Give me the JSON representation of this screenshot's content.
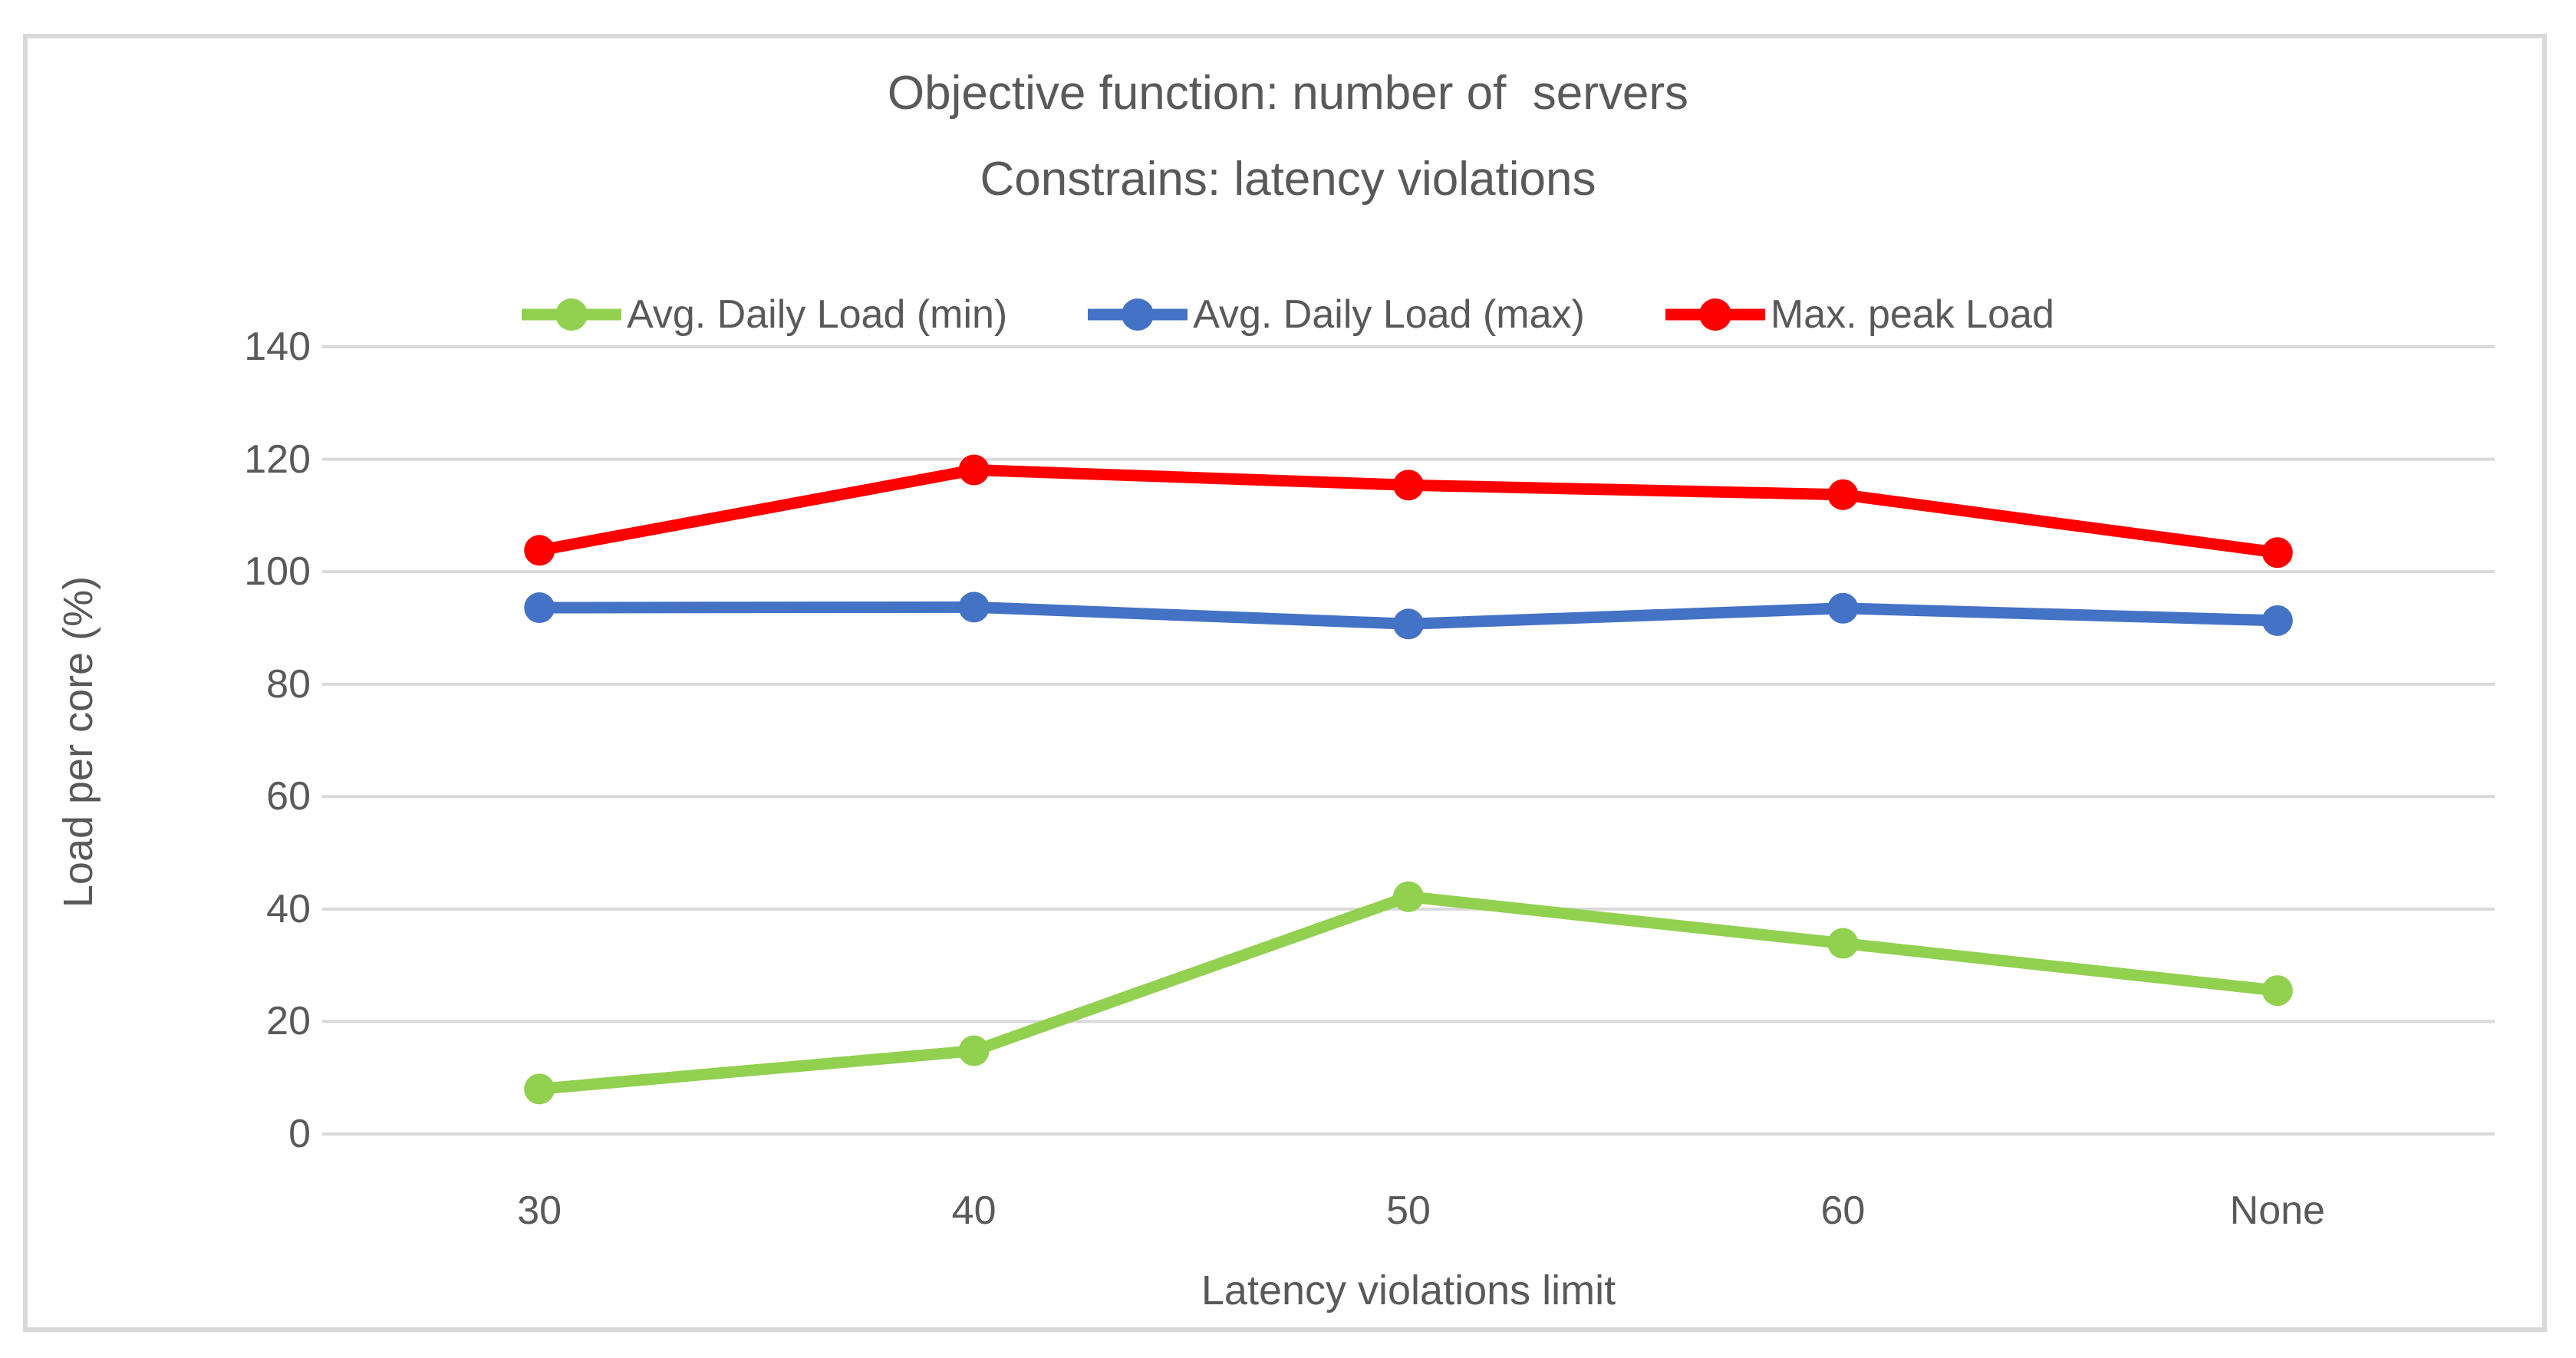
{
  "chart_data": {
    "type": "line",
    "title": "Objective function: number of  servers",
    "subtitle": "Constrains: latency violations",
    "categories": [
      "30",
      "40",
      "50",
      "60",
      "None"
    ],
    "series": [
      {
        "name": "Avg. Daily Load (min)",
        "color": "#92D050",
        "values": [
          8,
          14.8,
          42.2,
          33.9,
          25.5
        ]
      },
      {
        "name": "Avg. Daily Load (max)",
        "color": "#4472C4",
        "values": [
          93.6,
          93.7,
          90.7,
          93.5,
          91.3
        ]
      },
      {
        "name": "Max. peak Load",
        "color": "#FF0000",
        "values": [
          103.8,
          118.1,
          115.4,
          113.7,
          103.4
        ]
      }
    ],
    "xlabel": "Latency violations limit",
    "ylabel": "Load per core (%)",
    "ylim": [
      0,
      140
    ],
    "ytick_step": 20,
    "yticks": [
      "0",
      "20",
      "40",
      "60",
      "80",
      "100",
      "120",
      "140"
    ],
    "grid": true,
    "legend_position": "top",
    "marker": "circle"
  },
  "colors": {
    "background": "#FFFFFF",
    "frame": "#D9D9D9",
    "gridline": "#D9D9D9",
    "text": "#595959",
    "series_green": "#92D050",
    "series_blue": "#4472C4",
    "series_red": "#FF0000"
  }
}
